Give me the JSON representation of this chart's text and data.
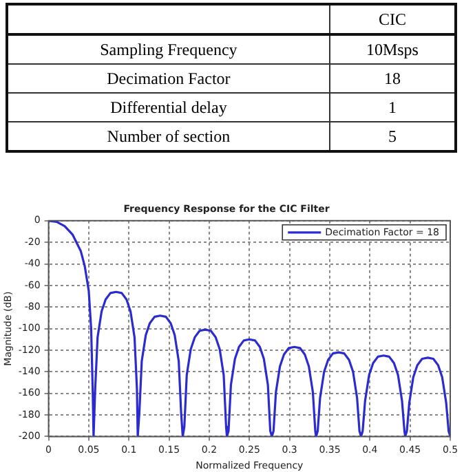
{
  "chart_data": [
    {
      "type": "other",
      "title": "CIC",
      "categories": [
        "Sampling Frequency",
        "Decimation Factor",
        "Differential delay",
        "Number of section"
      ],
      "value_labels": [
        "10Msps",
        "18",
        "1",
        "5"
      ]
    },
    {
      "type": "line",
      "title": "Frequency Response for the CIC Filter",
      "xlabel": "Normalized Frequency",
      "ylabel": "Magnitude (dB)",
      "xlim": [
        0,
        0.5
      ],
      "xticks": [
        0,
        0.05,
        0.1,
        0.15,
        0.2,
        0.25,
        0.3,
        0.35,
        0.4,
        0.45,
        0.5
      ],
      "ylim": [
        -200,
        0
      ],
      "yticks": [
        -200,
        -180,
        -160,
        -140,
        -120,
        -100,
        -80,
        -60,
        -40,
        -20,
        0
      ],
      "grid": true,
      "legend": "top right",
      "marker": "none",
      "line_style": "solid",
      "series": [
        {
          "name": "Decimation Factor = 18",
          "color": "#2b2bd0",
          "x": [
            0,
            0.01,
            0.02,
            0.03,
            0.04,
            0.045,
            0.05,
            0.053,
            0.055,
            0.056,
            0.058,
            0.061,
            0.066,
            0.071,
            0.077,
            0.084,
            0.091,
            0.097,
            0.102,
            0.107,
            0.11,
            0.111,
            0.113,
            0.116,
            0.121,
            0.126,
            0.132,
            0.139,
            0.146,
            0.152,
            0.157,
            0.162,
            0.165,
            0.167,
            0.169,
            0.172,
            0.177,
            0.182,
            0.188,
            0.195,
            0.202,
            0.208,
            0.213,
            0.218,
            0.221,
            0.222,
            0.224,
            0.227,
            0.232,
            0.237,
            0.243,
            0.25,
            0.257,
            0.263,
            0.268,
            0.273,
            0.276,
            0.278,
            0.28,
            0.283,
            0.288,
            0.293,
            0.299,
            0.306,
            0.313,
            0.319,
            0.324,
            0.329,
            0.332,
            0.333,
            0.335,
            0.338,
            0.343,
            0.348,
            0.354,
            0.361,
            0.368,
            0.374,
            0.379,
            0.384,
            0.387,
            0.389,
            0.391,
            0.394,
            0.399,
            0.404,
            0.41,
            0.417,
            0.424,
            0.43,
            0.435,
            0.44,
            0.443,
            0.444,
            0.446,
            0.449,
            0.454,
            0.459,
            0.465,
            0.472,
            0.479,
            0.485,
            0.49,
            0.495,
            0.498,
            0.5
          ],
          "values": [
            0,
            -1,
            -5,
            -13,
            -28,
            -42,
            -65,
            -100,
            -160,
            -200,
            -156,
            -108,
            -84,
            -73,
            -67,
            -66,
            -67,
            -73,
            -84,
            -108,
            -156,
            -200,
            -178,
            -130,
            -106,
            -95,
            -89,
            -88,
            -89,
            -95,
            -106,
            -130,
            -178,
            -200,
            -191,
            -143,
            -119,
            -108,
            -102,
            -101,
            -102,
            -108,
            -119,
            -143,
            -191,
            -200,
            -195,
            -152,
            -128,
            -117,
            -111,
            -110,
            -111,
            -117,
            -128,
            -152,
            -195,
            -200,
            -195,
            -159,
            -135,
            -124,
            -118,
            -117,
            -118,
            -124,
            -135,
            -159,
            -195,
            -200,
            -195,
            -164,
            -140,
            -129,
            -123,
            -122,
            -123,
            -129,
            -140,
            -164,
            -195,
            -200,
            -195,
            -167,
            -143,
            -132,
            -126,
            -125,
            -126,
            -132,
            -143,
            -167,
            -195,
            -200,
            -195,
            -169,
            -145,
            -134,
            -128,
            -127,
            -128,
            -134,
            -145,
            -169,
            -195,
            -200
          ]
        }
      ]
    }
  ]
}
